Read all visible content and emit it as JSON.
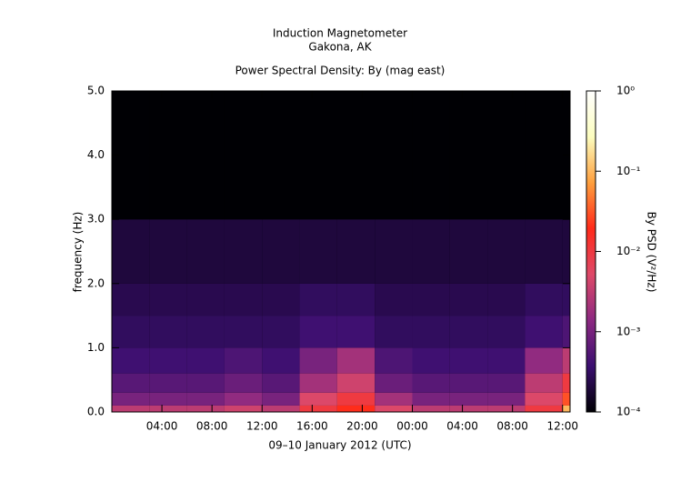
{
  "chart_data": {
    "type": "heatmap",
    "title": "Induction Magnetometer",
    "subtitle": "Gakona, AK",
    "plot_title": "Power Spectral Density: By (mag east)",
    "x_label": "09–10 January 2012 (UTC)",
    "y_label": "frequency (Hz)",
    "xlim": [
      0,
      36.6
    ],
    "xticks": [
      {
        "value": 4,
        "label": "04:00"
      },
      {
        "value": 8,
        "label": "08:00"
      },
      {
        "value": 12,
        "label": "12:00"
      },
      {
        "value": 16,
        "label": "16:00"
      },
      {
        "value": 20,
        "label": "20:00"
      },
      {
        "value": 24,
        "label": "00:00"
      },
      {
        "value": 28,
        "label": "04:00"
      },
      {
        "value": 32,
        "label": "08:00"
      },
      {
        "value": 36,
        "label": "12:00"
      }
    ],
    "ylim": [
      0,
      5
    ],
    "yticks": [
      {
        "value": 0,
        "label": "0.0"
      },
      {
        "value": 1,
        "label": "1.0"
      },
      {
        "value": 2,
        "label": "2.0"
      },
      {
        "value": 3,
        "label": "3.0"
      },
      {
        "value": 4,
        "label": "4.0"
      },
      {
        "value": 5,
        "label": "5.0"
      }
    ],
    "x_bins": [
      0,
      3,
      6,
      9,
      12,
      15,
      18,
      21,
      24,
      27,
      30,
      33,
      36,
      36.6
    ],
    "y_bins": [
      0,
      0.1,
      0.3,
      0.6,
      1,
      1.5,
      2,
      3,
      5
    ],
    "values": [
      [
        0.003,
        0.003,
        0.003,
        0.004,
        0.003,
        0.01,
        0.02,
        0.005,
        0.003,
        0.003,
        0.003,
        0.01,
        0.1
      ],
      [
        0.001,
        0.001,
        0.001,
        0.0015,
        0.001,
        0.005,
        0.01,
        0.002,
        0.001,
        0.001,
        0.001,
        0.005,
        0.03
      ],
      [
        0.0006,
        0.0006,
        0.0006,
        0.0008,
        0.0006,
        0.002,
        0.004,
        0.0008,
        0.0006,
        0.0006,
        0.0006,
        0.003,
        0.01
      ],
      [
        0.0004,
        0.0004,
        0.0004,
        0.0005,
        0.0004,
        0.001,
        0.002,
        0.0005,
        0.0004,
        0.0004,
        0.0004,
        0.0015,
        0.003
      ],
      [
        0.0003,
        0.0003,
        0.0003,
        0.0003,
        0.0003,
        0.0004,
        0.0004,
        0.0003,
        0.0003,
        0.0003,
        0.0003,
        0.0004,
        0.0005
      ],
      [
        0.00025,
        0.00025,
        0.00025,
        0.00025,
        0.00025,
        0.0003,
        0.0003,
        0.00025,
        0.00025,
        0.00025,
        0.00025,
        0.0003,
        0.0003
      ],
      [
        0.0002,
        0.0002,
        0.0002,
        0.0002,
        0.0002,
        0.0002,
        0.0002,
        0.0002,
        0.0002,
        0.0002,
        0.0002,
        0.0002,
        0.0002
      ],
      [
        0.0001,
        0.0001,
        0.0001,
        0.0001,
        0.0001,
        0.0001,
        0.0001,
        0.0001,
        0.0001,
        0.0001,
        0.0001,
        0.0001,
        0.0001
      ]
    ],
    "colorbar": {
      "label": "By PSD (V²/Hz)",
      "log": true,
      "lim": [
        0.0001,
        1
      ],
      "ticks": [
        {
          "value": 0.0001,
          "label": "10⁻⁴"
        },
        {
          "value": 0.001,
          "label": "10⁻³"
        },
        {
          "value": 0.01,
          "label": "10⁻²"
        },
        {
          "value": 0.1,
          "label": "10⁻¹"
        },
        {
          "value": 1,
          "label": "10⁰"
        }
      ],
      "colors": [
        "#000004",
        "#3b0f70",
        "#8c2981",
        "#de4968",
        "#ff2a1a",
        "#fe9f3d",
        "#fcfdbf",
        "#ffffff"
      ]
    }
  }
}
